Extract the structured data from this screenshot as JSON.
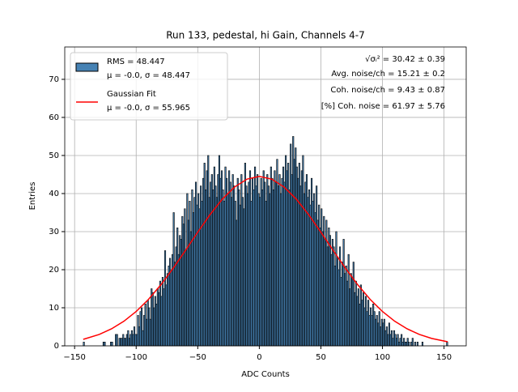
{
  "chart_data": {
    "type": "histogram",
    "title": "Run 133, pedestal, hi Gain, Channels 4-7",
    "xlabel": "ADC Counts",
    "ylabel": "Entries",
    "bins": [
      -143,
      -142,
      -141,
      -140,
      -139,
      -138,
      -137,
      -136,
      -135,
      -134,
      -133,
      -132,
      -131,
      -130,
      -129,
      -128,
      -127,
      -126,
      -125,
      -124,
      -123,
      -122,
      -121,
      -120,
      -119,
      -118,
      -117,
      -116,
      -115,
      -114,
      -113,
      -112,
      -111,
      -110,
      -109,
      -108,
      -107,
      -106,
      -105,
      -104,
      -103,
      -102,
      -101,
      -100,
      -99,
      -98,
      -97,
      -96,
      -95,
      -94,
      -93,
      -92,
      -91,
      -90,
      -89,
      -88,
      -87,
      -86,
      -85,
      -84,
      -83,
      -82,
      -81,
      -80,
      -79,
      -78,
      -77,
      -76,
      -75,
      -74,
      -73,
      -72,
      -71,
      -70,
      -69,
      -68,
      -67,
      -66,
      -65,
      -64,
      -63,
      -62,
      -61,
      -60,
      -59,
      -58,
      -57,
      -56,
      -55,
      -54,
      -53,
      -52,
      -51,
      -50,
      -49,
      -48,
      -47,
      -46,
      -45,
      -44,
      -43,
      -42,
      -41,
      -40,
      -39,
      -38,
      -37,
      -36,
      -35,
      -34,
      -33,
      -32,
      -31,
      -30,
      -29,
      -28,
      -27,
      -26,
      -25,
      -24,
      -23,
      -22,
      -21,
      -20,
      -19,
      -18,
      -17,
      -16,
      -15,
      -14,
      -13,
      -12,
      -11,
      -10,
      -9,
      -8,
      -7,
      -6,
      -5,
      -4,
      -3,
      -2,
      -1,
      0,
      1,
      2,
      3,
      4,
      5,
      6,
      7,
      8,
      9,
      10,
      11,
      12,
      13,
      14,
      15,
      16,
      17,
      18,
      19,
      20,
      21,
      22,
      23,
      24,
      25,
      26,
      27,
      28,
      29,
      30,
      31,
      32,
      33,
      34,
      35,
      36,
      37,
      38,
      39,
      40,
      41,
      42,
      43,
      44,
      45,
      46,
      47,
      48,
      49,
      50,
      51,
      52,
      53,
      54,
      55,
      56,
      57,
      58,
      59,
      60,
      61,
      62,
      63,
      64,
      65,
      66,
      67,
      68,
      69,
      70,
      71,
      72,
      73,
      74,
      75,
      76,
      77,
      78,
      79,
      80,
      81,
      82,
      83,
      84,
      85,
      86,
      87,
      88,
      89,
      90,
      91,
      92,
      93,
      94,
      95,
      96,
      97,
      98,
      99,
      100,
      101,
      102,
      103,
      104,
      105,
      106,
      107,
      108,
      109,
      110,
      111,
      112,
      113,
      114,
      115,
      116,
      117,
      118,
      119,
      120,
      121,
      122,
      123,
      124,
      125,
      126,
      127,
      128,
      129,
      130,
      131,
      132,
      133,
      134,
      135,
      136,
      137,
      138,
      139,
      140,
      141,
      142,
      143,
      144,
      145,
      146,
      147,
      148,
      149,
      150,
      151,
      152,
      153
    ],
    "counts": [
      1,
      0,
      0,
      0,
      0,
      0,
      0,
      0,
      0,
      0,
      0,
      0,
      0,
      0,
      0,
      0,
      1,
      1,
      0,
      0,
      0,
      0,
      1,
      1,
      0,
      0,
      3,
      3,
      0,
      2,
      2,
      2,
      3,
      2,
      2,
      3,
      4,
      2,
      3,
      4,
      3,
      5,
      3,
      3,
      8,
      5,
      9,
      10,
      4,
      8,
      11,
      7,
      12,
      10,
      7,
      15,
      14,
      10,
      13,
      11,
      15,
      14,
      17,
      13,
      18,
      15,
      25,
      16,
      19,
      21,
      23,
      20,
      24,
      35,
      22,
      26,
      31,
      24,
      29,
      28,
      34,
      32,
      36,
      25,
      40,
      33,
      38,
      30,
      41,
      35,
      39,
      43,
      37,
      40,
      36,
      42,
      38,
      44,
      48,
      41,
      46,
      50,
      39,
      43,
      45,
      41,
      47,
      42,
      39,
      45,
      50,
      44,
      46,
      41,
      38,
      47,
      44,
      40,
      46,
      43,
      39,
      45,
      42,
      38,
      33,
      44,
      41,
      37,
      45,
      39,
      36,
      48,
      42,
      40,
      43,
      46,
      38,
      44,
      41,
      47,
      42,
      45,
      40,
      39,
      44,
      41,
      46,
      43,
      38,
      45,
      42,
      40,
      47,
      44,
      41,
      46,
      43,
      49,
      42,
      45,
      40,
      44,
      47,
      43,
      50,
      46,
      48,
      41,
      53,
      45,
      55,
      49,
      52,
      47,
      44,
      48,
      42,
      46,
      50,
      40,
      43,
      45,
      39,
      41,
      37,
      44,
      38,
      40,
      35,
      42,
      33,
      37,
      31,
      36,
      30,
      34,
      28,
      33,
      26,
      31,
      29,
      24,
      28,
      26,
      21,
      30,
      23,
      20,
      26,
      18,
      22,
      28,
      19,
      21,
      17,
      24,
      15,
      19,
      18,
      22,
      14,
      17,
      13,
      15,
      11,
      16,
      12,
      14,
      10,
      13,
      9,
      12,
      8,
      10,
      8,
      11,
      9,
      7,
      8,
      6,
      9,
      5,
      7,
      6,
      7,
      4,
      5,
      3,
      6,
      3,
      4,
      2,
      4,
      3,
      2,
      3,
      1,
      2,
      3,
      1,
      2,
      1,
      1,
      2,
      1,
      0,
      1,
      2,
      0,
      1,
      0,
      1,
      0,
      0,
      0,
      1,
      0,
      0,
      0,
      0,
      0,
      0,
      0,
      0,
      0,
      0,
      0,
      0,
      0,
      0,
      0,
      0,
      0,
      0,
      0,
      1
    ],
    "color": "#4682b4",
    "edgecolor": "#000000",
    "hist_label": "RMS = 48.447",
    "hist_stats": "μ = -0.0, σ = 48.447",
    "fit": {
      "name": "Gaussian Fit",
      "stats": "μ = -0.0, σ = 55.965",
      "color": "#ff0000",
      "x": [
        -143,
        -130,
        -120,
        -110,
        -100,
        -90,
        -80,
        -70,
        -60,
        -50,
        -40,
        -30,
        -20,
        -10,
        0,
        10,
        20,
        30,
        40,
        50,
        60,
        70,
        80,
        90,
        100,
        110,
        120,
        130,
        140,
        153
      ],
      "values": [
        1.7,
        2.99,
        4.47,
        6.45,
        9.02,
        12.21,
        16.0,
        20.35,
        25.05,
        29.86,
        34.47,
        38.55,
        41.74,
        43.79,
        44.5,
        43.79,
        41.74,
        38.55,
        34.47,
        29.86,
        25.05,
        20.35,
        16.0,
        12.21,
        9.02,
        6.45,
        4.47,
        2.99,
        1.94,
        1.06
      ]
    },
    "annotations": [
      "√σᵢ² = 30.42 ± 0.39",
      "Avg. noise/ch = 15.21 ± 0.2",
      "Coh. noise/ch = 9.43 ± 0.87",
      "[%] Coh. noise = 61.97 ± 5.76"
    ],
    "xlim": [
      -158,
      168
    ],
    "ylim": [
      0,
      78.5
    ],
    "xticks": [
      {
        "value": -150,
        "label": "−150"
      },
      {
        "value": -100,
        "label": "−100"
      },
      {
        "value": -50,
        "label": "−50"
      },
      0,
      50,
      100,
      150
    ],
    "yticks": [
      0,
      10,
      20,
      30,
      40,
      50,
      60,
      70
    ],
    "grid": true,
    "legend": "upper left"
  }
}
